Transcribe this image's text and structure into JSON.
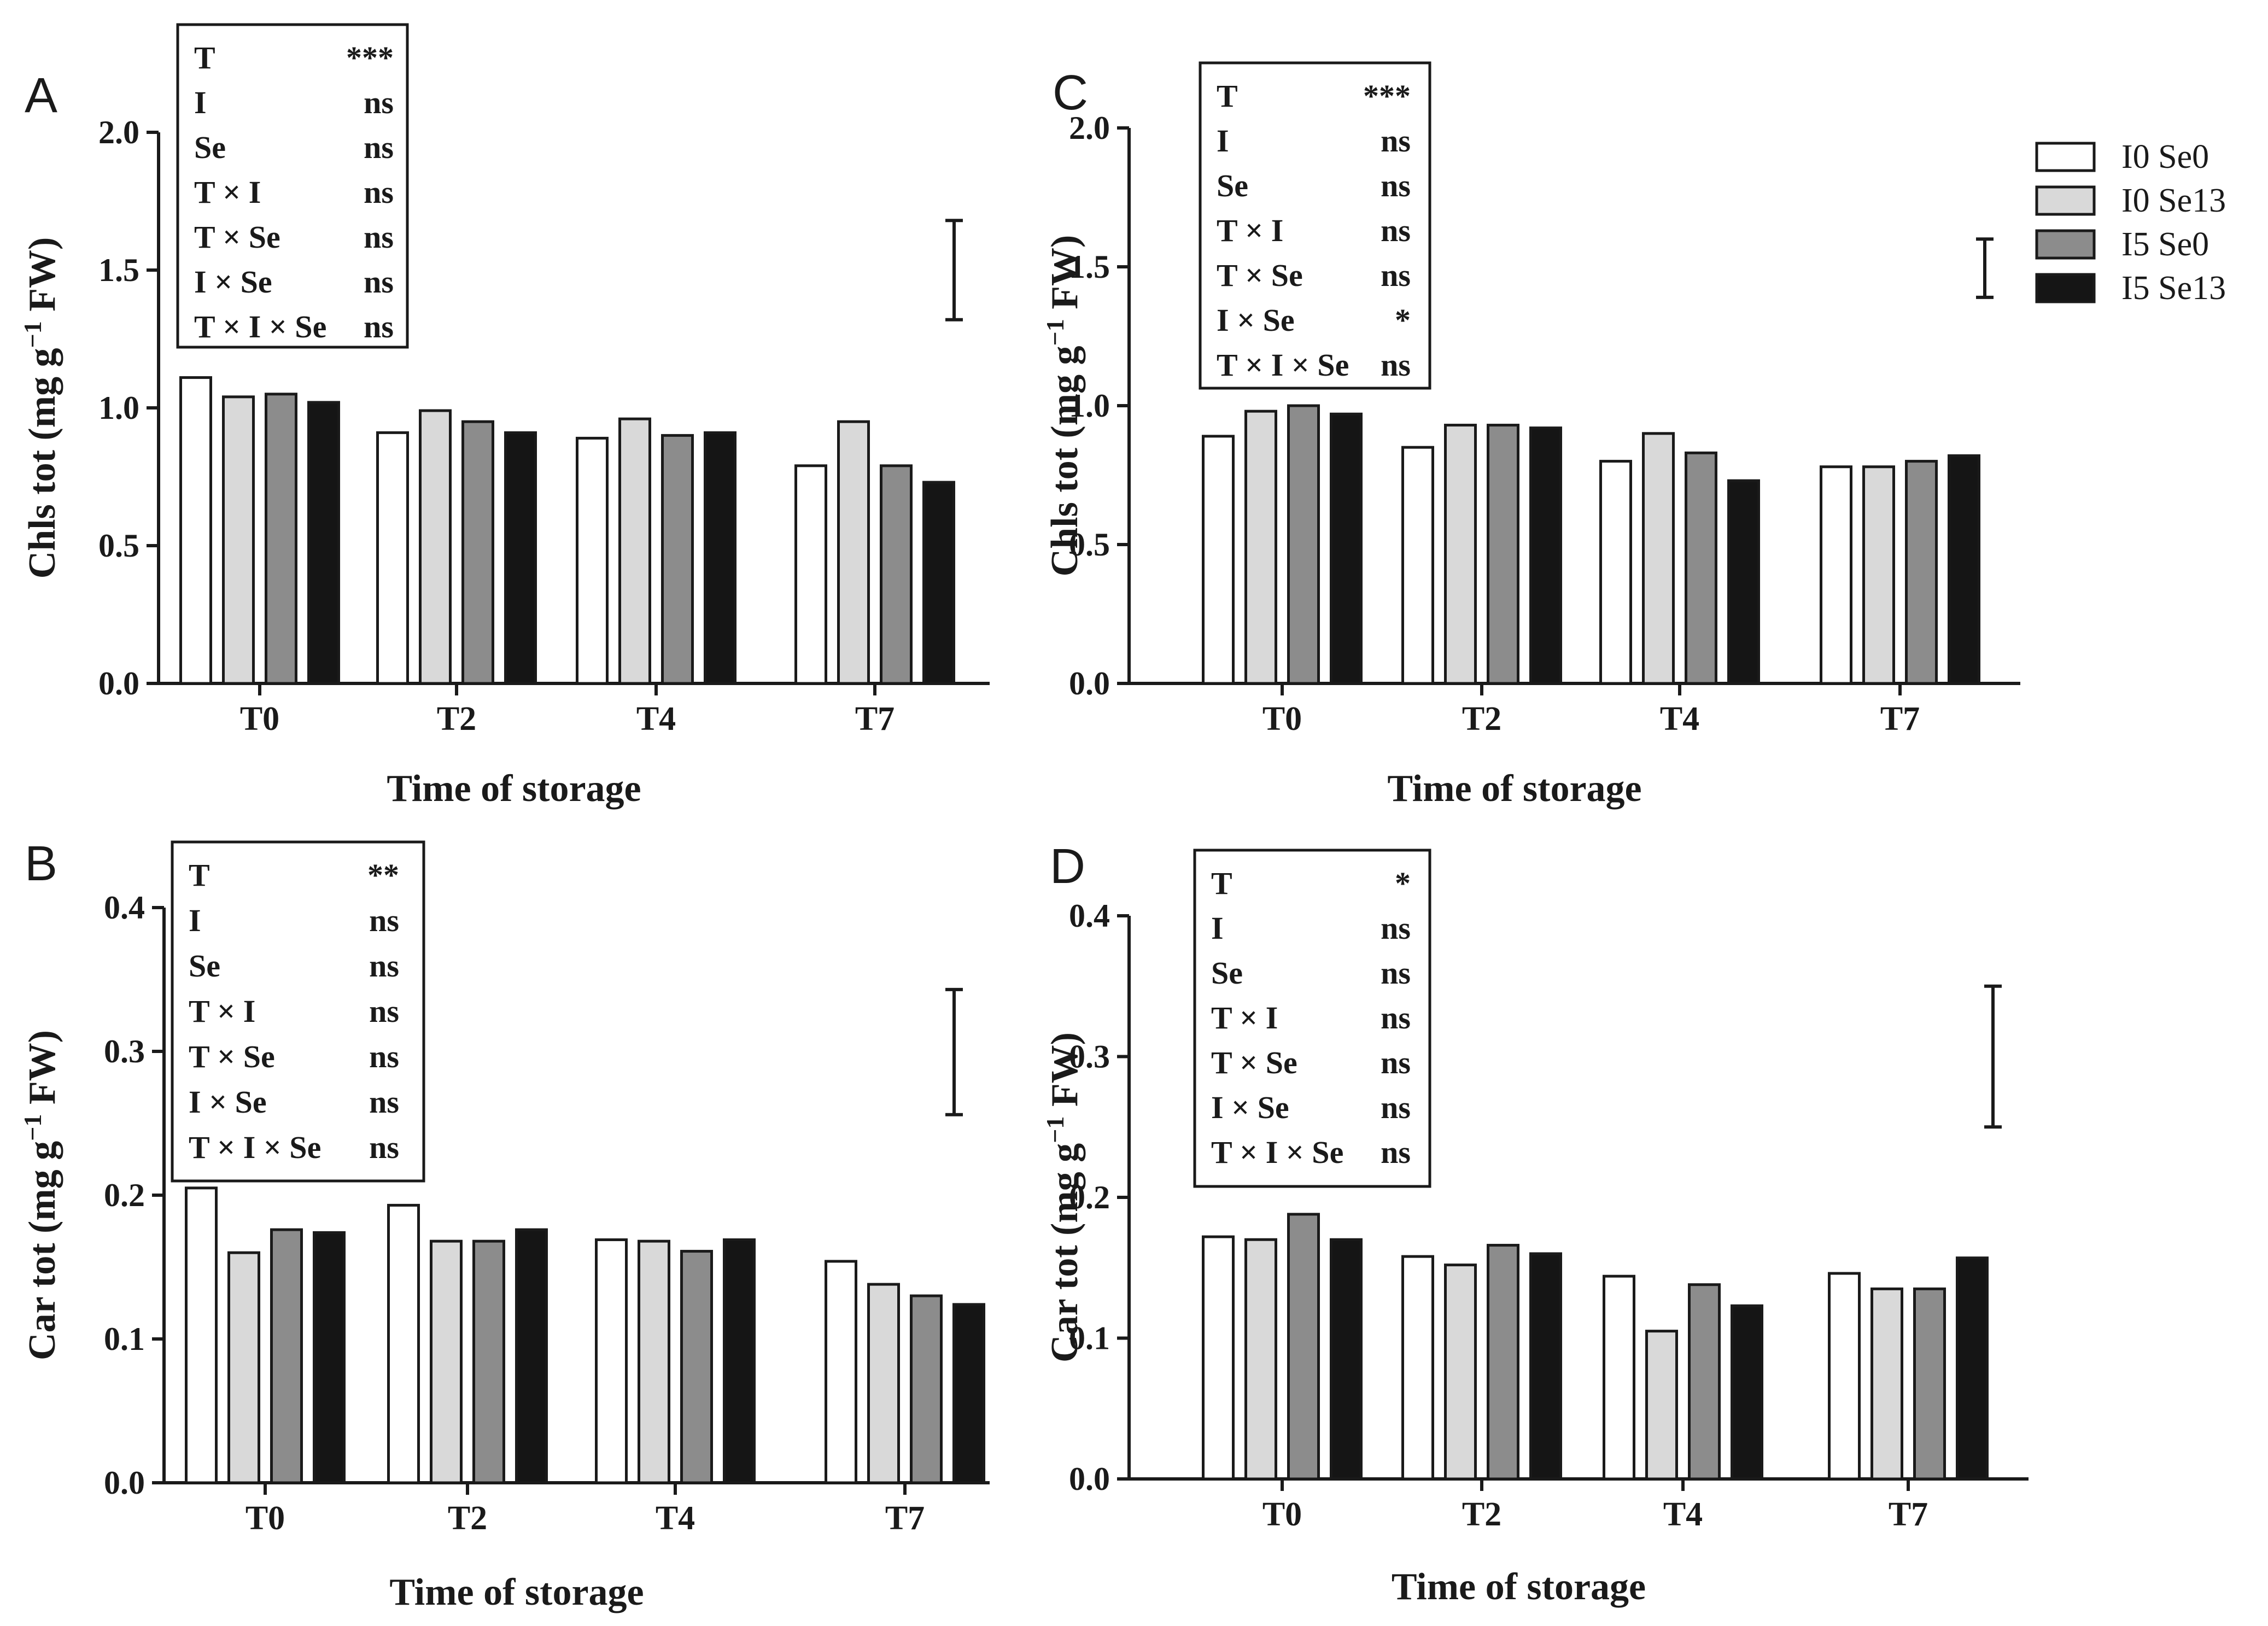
{
  "chart_data": [
    {
      "type": "bar",
      "panel": "A",
      "categories": [
        "T0",
        "T2",
        "T4",
        "T7"
      ],
      "series": [
        {
          "name": "I0 Se0",
          "values": [
            1.11,
            0.91,
            0.89,
            0.79
          ]
        },
        {
          "name": "I0 Se13",
          "values": [
            1.04,
            0.99,
            0.96,
            0.95
          ]
        },
        {
          "name": "I5 Se0",
          "values": [
            1.05,
            0.95,
            0.9,
            0.79
          ]
        },
        {
          "name": "I5 Se13",
          "values": [
            1.02,
            0.91,
            0.91,
            0.73
          ]
        }
      ],
      "xlabel": "Time of storage",
      "ylabel_main": "Chls tot (mg g",
      "ylabel_sup": "−1",
      "ylabel_end": " FW)",
      "ylim": [
        0,
        2.0
      ],
      "yticks": [
        "0.0",
        "0.5",
        "1.0",
        "1.5",
        "2.0"
      ],
      "error_bar": [
        1.32,
        1.68
      ],
      "stats": [
        {
          "term": "T",
          "sig": "***"
        },
        {
          "term": "I",
          "sig": "ns"
        },
        {
          "term": "Se",
          "sig": "ns"
        },
        {
          "term": "T × I",
          "sig": "ns"
        },
        {
          "term": "T × Se",
          "sig": "ns"
        },
        {
          "term": "I × Se",
          "sig": "ns"
        },
        {
          "term": "T × I × Se",
          "sig": "ns"
        }
      ]
    },
    {
      "type": "bar",
      "panel": "B",
      "categories": [
        "T0",
        "T2",
        "T4",
        "T7"
      ],
      "series": [
        {
          "name": "I0 Se0",
          "values": [
            0.205,
            0.193,
            0.169,
            0.154
          ]
        },
        {
          "name": "I0 Se13",
          "values": [
            0.16,
            0.168,
            0.168,
            0.138
          ]
        },
        {
          "name": "I5 Se0",
          "values": [
            0.176,
            0.168,
            0.161,
            0.13
          ]
        },
        {
          "name": "I5 Se13",
          "values": [
            0.174,
            0.176,
            0.169,
            0.124
          ]
        }
      ],
      "xlabel": "Time of storage",
      "ylabel_main": "Car tot (mg g",
      "ylabel_sup": "−1",
      "ylabel_end": " FW)",
      "ylim": [
        0,
        0.4
      ],
      "yticks": [
        "0.0",
        "0.1",
        "0.2",
        "0.3",
        "0.4"
      ],
      "error_bar": [
        0.256,
        0.343
      ],
      "stats": [
        {
          "term": "T",
          "sig": "**"
        },
        {
          "term": "I",
          "sig": "ns"
        },
        {
          "term": "Se",
          "sig": "ns"
        },
        {
          "term": "T × I",
          "sig": "ns"
        },
        {
          "term": "T × Se",
          "sig": "ns"
        },
        {
          "term": "I × Se",
          "sig": "ns"
        },
        {
          "term": "T × I × Se",
          "sig": "ns"
        }
      ]
    },
    {
      "type": "bar",
      "panel": "C",
      "categories": [
        "T0",
        "T2",
        "T4",
        "T7"
      ],
      "series": [
        {
          "name": "I0 Se0",
          "values": [
            0.89,
            0.85,
            0.8,
            0.78
          ]
        },
        {
          "name": "I0 Se13",
          "values": [
            0.98,
            0.93,
            0.9,
            0.78
          ]
        },
        {
          "name": "I5 Se0",
          "values": [
            1.0,
            0.93,
            0.83,
            0.8
          ]
        },
        {
          "name": "I5 Se13",
          "values": [
            0.97,
            0.92,
            0.73,
            0.82
          ]
        }
      ],
      "xlabel": "Time of storage",
      "ylabel_main": "Chls tot (mg g",
      "ylabel_sup": "−1",
      "ylabel_end": " FW)",
      "ylim": [
        0,
        2.0
      ],
      "yticks": [
        "0.0",
        "0.5",
        "1.0",
        "1.5",
        "2.0"
      ],
      "error_bar": [
        1.39,
        1.6
      ],
      "stats": [
        {
          "term": "T",
          "sig": "***"
        },
        {
          "term": "I",
          "sig": "ns"
        },
        {
          "term": "Se",
          "sig": "ns"
        },
        {
          "term": "T × I",
          "sig": "ns"
        },
        {
          "term": "T × Se",
          "sig": "ns"
        },
        {
          "term": "I × Se",
          "sig": "*"
        },
        {
          "term": "T × I × Se",
          "sig": "ns"
        }
      ]
    },
    {
      "type": "bar",
      "panel": "D",
      "categories": [
        "T0",
        "T2",
        "T4",
        "T7"
      ],
      "series": [
        {
          "name": "I0 Se0",
          "values": [
            0.172,
            0.158,
            0.144,
            0.146
          ]
        },
        {
          "name": "I0 Se13",
          "values": [
            0.17,
            0.152,
            0.105,
            0.135
          ]
        },
        {
          "name": "I5 Se0",
          "values": [
            0.188,
            0.166,
            0.138,
            0.135
          ]
        },
        {
          "name": "I5 Se13",
          "values": [
            0.17,
            0.16,
            0.123,
            0.157
          ]
        }
      ],
      "xlabel": "Time of storage",
      "ylabel_main": "Car tot (mg g",
      "ylabel_sup": "−1",
      "ylabel_end": " FW)",
      "ylim": [
        0,
        0.4
      ],
      "yticks": [
        "0.0",
        "0.1",
        "0.2",
        "0.3",
        "0.4"
      ],
      "error_bar": [
        0.25,
        0.35
      ],
      "stats": [
        {
          "term": "T",
          "sig": "*"
        },
        {
          "term": "I",
          "sig": "ns"
        },
        {
          "term": "Se",
          "sig": "ns"
        },
        {
          "term": "T × I",
          "sig": "ns"
        },
        {
          "term": "T × Se",
          "sig": "ns"
        },
        {
          "term": "I × Se",
          "sig": "ns"
        },
        {
          "term": "T × I × Se",
          "sig": "ns"
        }
      ]
    }
  ],
  "legend": {
    "items": [
      {
        "label": "I0 Se0",
        "color": "#ffffff"
      },
      {
        "label": "I0 Se13",
        "color": "#d9d9d9"
      },
      {
        "label": "I5 Se0",
        "color": "#8c8c8c"
      },
      {
        "label": "I5 Se13",
        "color": "#151515"
      }
    ]
  }
}
